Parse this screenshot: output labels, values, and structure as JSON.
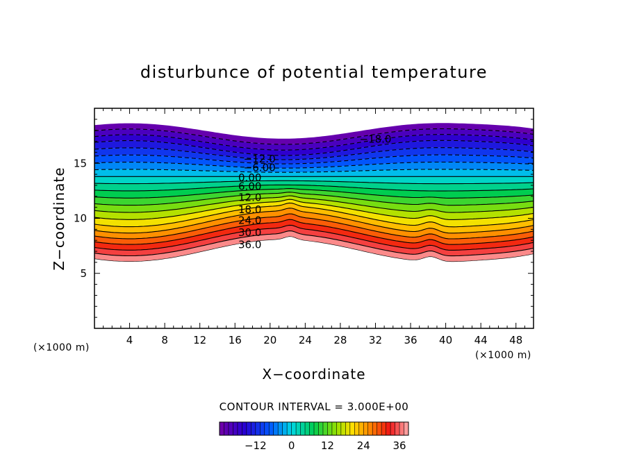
{
  "chart_data": {
    "type": "contour",
    "title": "disturbunce of potential temperature",
    "xlabel": "X−coordinate",
    "ylabel": "Z−coordinate",
    "x_unit_left": "(×1000 m)",
    "x_unit_right": "(×1000 m)",
    "xlim": [
      0,
      50
    ],
    "ylim": [
      0,
      20
    ],
    "x_ticks": [
      "4",
      "8",
      "12",
      "16",
      "20",
      "24",
      "28",
      "32",
      "36",
      "40",
      "44",
      "48"
    ],
    "x_tick_values": [
      4,
      8,
      12,
      16,
      20,
      24,
      28,
      32,
      36,
      40,
      44,
      48
    ],
    "y_ticks": [
      "5",
      "10",
      "15"
    ],
    "y_tick_values": [
      5,
      10,
      15
    ],
    "contour_interval_text": "CONTOUR INTERVAL = 3.000E+00",
    "contour_interval": 3,
    "levels": [
      -24,
      -21,
      -18,
      -15,
      -12,
      -9,
      -6,
      -3,
      0,
      3,
      6,
      9,
      12,
      15,
      18,
      21,
      24,
      27,
      30,
      33,
      36,
      39
    ],
    "contour_labels": [
      {
        "text": "−18.0",
        "x": 32,
        "z": 17.2
      },
      {
        "text": "−12.0",
        "x": 18.8,
        "z": 15.4
      },
      {
        "text": "−6.00",
        "x": 18.8,
        "z": 14.6
      },
      {
        "text": "0.00",
        "x": 17.7,
        "z": 13.7
      },
      {
        "text": "6.00",
        "x": 17.7,
        "z": 12.9
      },
      {
        "text": "12.0",
        "x": 17.7,
        "z": 11.9
      },
      {
        "text": "18.0",
        "x": 17.7,
        "z": 10.8
      },
      {
        "text": "24.0",
        "x": 17.7,
        "z": 9.8
      },
      {
        "text": "30.0",
        "x": 17.7,
        "z": 8.7
      },
      {
        "text": "36.0",
        "x": 17.7,
        "z": 7.6
      }
    ],
    "colorbar_ticks": [
      "−12",
      "0",
      "12",
      "24",
      "36"
    ],
    "colorbar_tick_values": [
      -12,
      0,
      12,
      24,
      36
    ],
    "colorbar_range": [
      -24,
      39
    ]
  }
}
